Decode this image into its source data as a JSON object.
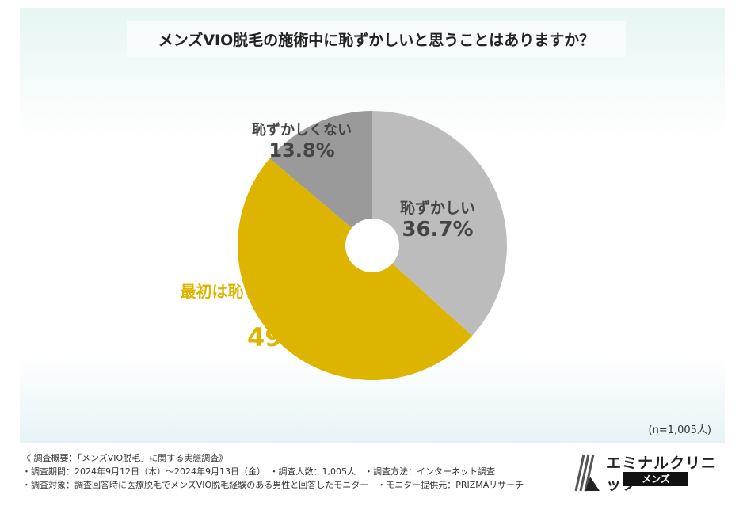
{
  "title": "メンズVIO脱毛の施術中に恥ずかしいと思うことはありますか？",
  "sample": "(n=1,005人)",
  "notes": [
    "《 調査概要：「メンズVIO脱毛」に関する実態調査》",
    "・調査期間：2024年9月12日（木）〜2024年9月13日（金）　・調査人数：1,005人　・調査方法：インターネット調査",
    "・調査対象：調査回答時に医療脱毛でメンズVIO脱毛経験のある男性と回答したモニター　・モニター提供元：PRIZMAリサーチ"
  ],
  "logo": {
    "name": "エミナルクリニック",
    "sub": "メンズ"
  },
  "chart_data": {
    "type": "pie",
    "donut": true,
    "title": "メンズVIO脱毛の施術中に恥ずかしいと思うことはありますか？",
    "slices": [
      {
        "label": "恥ずかしい",
        "value": 36.7,
        "value_label": "36.7%",
        "color": "#bcbcbc",
        "text_color": "#444444"
      },
      {
        "label": "最初は恥ずかしかったが今は慣れた",
        "value": 49.5,
        "value_label": "49.5%",
        "color": "#ddb500",
        "text_color": "#ddb500"
      },
      {
        "label": "恥ずかしくない",
        "value": 13.8,
        "value_label": "13.8%",
        "color": "#9a9a9a",
        "text_color": "#444444"
      }
    ]
  }
}
